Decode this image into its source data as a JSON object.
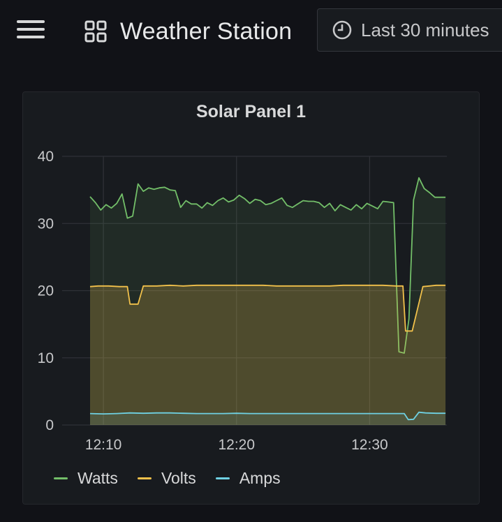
{
  "header": {
    "menu_icon": "hamburger-menu-icon",
    "dashboard_icon": "dashboard-grid-icon",
    "title": "Weather Station",
    "time_icon": "clock-icon",
    "time_range": "Last 30 minutes"
  },
  "panel": {
    "title": "Solar Panel 1"
  },
  "colors": {
    "Watts": "#73bf69",
    "Volts": "#f2c14b",
    "Amps": "#6fd1e3",
    "grid": "#2f3137"
  },
  "chart_data": {
    "type": "area",
    "y_ticks": [
      "0",
      "10",
      "20",
      "30",
      "40"
    ],
    "ylim": [
      0,
      40
    ],
    "x_ticks": [
      {
        "label": "12:10",
        "t": 10
      },
      {
        "label": "12:20",
        "t": 20
      },
      {
        "label": "12:30",
        "t": 30
      }
    ],
    "xlim": [
      6.9,
      35.8
    ],
    "grid": true,
    "legend_position": "bottom-left",
    "series": [
      {
        "name": "Watts",
        "x": [
          9.0,
          9.4,
          9.8,
          10.2,
          10.6,
          11.0,
          11.4,
          11.8,
          12.2,
          12.6,
          13.0,
          13.4,
          13.8,
          14.2,
          14.6,
          15.0,
          15.4,
          15.8,
          16.2,
          16.6,
          17.0,
          17.4,
          17.8,
          18.2,
          18.6,
          19.0,
          19.4,
          19.8,
          20.2,
          20.6,
          21.0,
          21.4,
          21.8,
          22.2,
          22.6,
          23.0,
          23.4,
          23.8,
          24.2,
          24.6,
          25.0,
          25.4,
          25.8,
          26.2,
          26.6,
          27.0,
          27.4,
          27.8,
          28.2,
          28.6,
          29.0,
          29.4,
          29.8,
          30.2,
          30.6,
          31.0,
          31.4,
          31.8,
          32.2,
          32.6,
          32.95,
          33.3,
          33.7,
          34.1,
          34.5,
          34.9,
          35.3,
          35.7
        ],
        "values": [
          34.0,
          33.1,
          32.0,
          32.8,
          32.3,
          33.0,
          34.4,
          30.8,
          31.1,
          35.9,
          34.8,
          35.3,
          35.1,
          35.3,
          35.4,
          35.0,
          34.9,
          32.4,
          33.4,
          32.9,
          32.9,
          32.3,
          33.1,
          32.7,
          33.4,
          33.8,
          33.2,
          33.5,
          34.2,
          33.7,
          33.0,
          33.6,
          33.4,
          32.8,
          33.0,
          33.4,
          33.8,
          32.7,
          32.4,
          32.9,
          33.4,
          33.3,
          33.3,
          33.1,
          32.4,
          33.0,
          31.9,
          32.8,
          32.4,
          32.0,
          32.8,
          32.2,
          33.0,
          32.6,
          32.2,
          33.3,
          33.2,
          33.1,
          10.9,
          10.7,
          15.8,
          33.5,
          36.8,
          35.2,
          34.6,
          33.9,
          33.9,
          33.9
        ]
      },
      {
        "name": "Volts",
        "x": [
          9.0,
          9.6,
          10.4,
          11.2,
          11.8,
          12.0,
          12.6,
          13.0,
          14.0,
          15.0,
          16.0,
          17.0,
          18.0,
          19.0,
          20.0,
          21.0,
          22.0,
          23.0,
          24.0,
          25.0,
          26.0,
          27.0,
          28.0,
          29.0,
          30.0,
          31.0,
          32.0,
          32.5,
          32.7,
          33.2,
          34.0,
          34.5,
          35.0,
          35.7
        ],
        "values": [
          20.6,
          20.7,
          20.7,
          20.6,
          20.6,
          18.0,
          18.0,
          20.7,
          20.7,
          20.8,
          20.7,
          20.8,
          20.8,
          20.8,
          20.8,
          20.8,
          20.8,
          20.7,
          20.7,
          20.7,
          20.7,
          20.7,
          20.8,
          20.8,
          20.8,
          20.8,
          20.7,
          20.7,
          14.0,
          14.0,
          20.6,
          20.7,
          20.8,
          20.8
        ]
      },
      {
        "name": "Amps",
        "x": [
          9.0,
          10.0,
          11.0,
          12.0,
          13.0,
          14.0,
          15.0,
          16.0,
          17.0,
          18.0,
          19.0,
          20.0,
          21.0,
          22.0,
          23.0,
          24.0,
          25.0,
          26.0,
          27.0,
          28.0,
          29.0,
          30.0,
          31.0,
          32.0,
          32.6,
          32.9,
          33.3,
          33.7,
          34.2,
          35.0,
          35.7
        ],
        "values": [
          1.7,
          1.65,
          1.7,
          1.8,
          1.75,
          1.8,
          1.8,
          1.75,
          1.7,
          1.7,
          1.7,
          1.75,
          1.7,
          1.7,
          1.7,
          1.7,
          1.7,
          1.7,
          1.7,
          1.7,
          1.7,
          1.7,
          1.7,
          1.7,
          1.7,
          0.8,
          0.85,
          1.9,
          1.8,
          1.75,
          1.75
        ]
      }
    ]
  }
}
